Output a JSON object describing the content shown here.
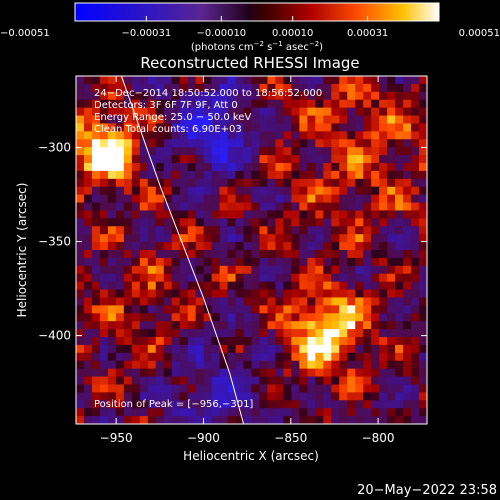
{
  "chart_data": {
    "type": "heatmap",
    "title": "Reconstructed RHESSI Image",
    "xlabel": "Heliocentric X (arcsec)",
    "ylabel": "Heliocentric Y (arcsec)",
    "xlim": [
      -973,
      -772
    ],
    "ylim": [
      -447,
      -262
    ],
    "x_ticks": [
      -950,
      -900,
      -850,
      -800
    ],
    "y_ticks": [
      -300,
      -350,
      -400
    ],
    "x_tick_labels": [
      "−950",
      "−900",
      "−850",
      "−800"
    ],
    "y_tick_labels": [
      "−300",
      "−350",
      "−400"
    ],
    "colorbar": {
      "min": -0.00051,
      "max": 0.00051,
      "ticks": [
        -0.00051,
        -0.00031,
        -0.0001,
        0.0001,
        0.00031,
        0.00051
      ],
      "tick_labels": [
        "−0.00051",
        "−0.00031",
        "−0.00010",
        "0.00010",
        "0.00031",
        "0.00051"
      ],
      "unit_prefix": "(photons cm",
      "unit_exp1": "−2",
      "unit_mid": " s",
      "unit_exp2": "−1",
      "unit_mid2": " asec",
      "unit_exp3": "−2",
      "unit_suffix": ")"
    },
    "annotations": {
      "time_range": "24−Dec−2014 18:50:52.000 to 18:56:52.000",
      "detectors": "Detectors: 3F 6F 7F 9F, Att 0",
      "energy_range": "Energy Range: 25.0 − 50.0 keV",
      "method_counts": "Clean    Total counts: 6.90E+03",
      "peak_position": "Position of Peak = [−956,−301]"
    },
    "sources": [
      {
        "x": -956,
        "y": -301
      },
      {
        "x": -830,
        "y": -398
      }
    ],
    "limb_curve": [
      [
        -947,
        -262
      ],
      [
        -925,
        -320
      ],
      [
        -900,
        -380
      ],
      [
        -885,
        -420
      ],
      [
        -877,
        -447
      ]
    ],
    "grid": false
  },
  "footer_date": "20−May−2022 23:58",
  "colors": {
    "background": "#000000",
    "text": "#ffffff",
    "limb_line": "#ffffff"
  }
}
